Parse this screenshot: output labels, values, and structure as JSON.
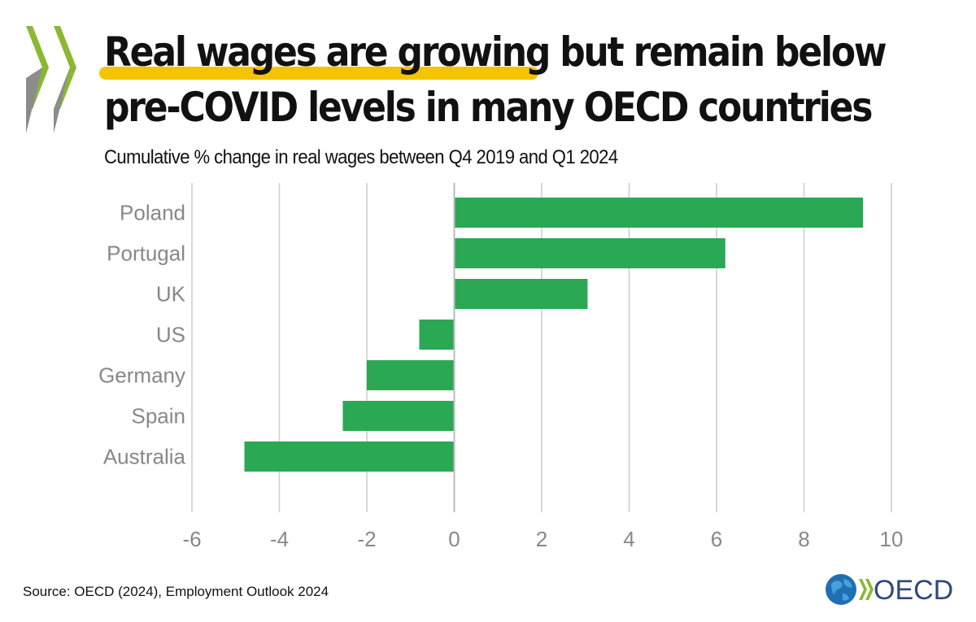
{
  "title": {
    "highlighted": "Real wages are growing",
    "rest_line1": " but remain below",
    "line2": "pre-COVID levels in many OECD countries"
  },
  "subtitle": "Cumulative % change in real wages between Q4 2019 and Q1 2024",
  "source": "Source: OECD (2024), Employment Outlook 2024",
  "logo": {
    "icon": "globe-icon",
    "text": "OECD"
  },
  "colors": {
    "bar": "#2aa853",
    "highlight": "#f5c400",
    "chevron_green": "#8ab832",
    "chevron_gray": "#8c8c8c",
    "grid": "#cccccc",
    "axis_text": "#888888"
  },
  "chart_data": {
    "type": "bar",
    "orientation": "horizontal",
    "categories": [
      "Poland",
      "Portugal",
      "UK",
      "US",
      "Germany",
      "Spain",
      "Australia"
    ],
    "values": [
      9.35,
      6.2,
      3.05,
      -0.8,
      -2.0,
      -2.55,
      -4.8
    ],
    "xlim": [
      -6,
      10
    ],
    "xticks": [
      -6,
      -4,
      -2,
      0,
      2,
      4,
      6,
      8,
      10
    ],
    "grid": "vertical",
    "title": "",
    "xlabel": "",
    "ylabel": ""
  }
}
